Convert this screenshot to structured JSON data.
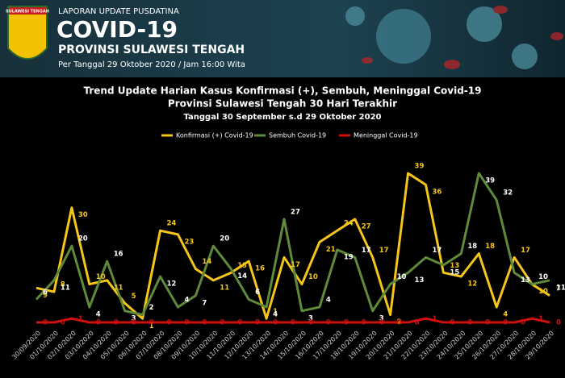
{
  "header": {
    "logo_text": "SULAWESI TENGAH",
    "kicker": "LAPORAN UPDATE PUSDATINA",
    "title": "COVID-19",
    "subtitle": "PROVINSI SULAWESI TENGAH",
    "date": "Per Tanggal 29 Oktober 2020 / Jam 16:00 Wita"
  },
  "chart_data": {
    "type": "line",
    "title": "Trend Update Harian Kasus Konfirmasi (+), Sembuh, Meninggal Covid-19",
    "subtitle": "Provinsi Sulawesi Tengah 30 Hari Terakhir",
    "caption": "Tanggal 30 September s.d 29 Oktober 2020",
    "categories": [
      "30/09/2020",
      "01/10/2020",
      "02/10/2020",
      "03/10/2020",
      "04/10/2020",
      "05/10/2020",
      "06/10/2020",
      "07/10/2020",
      "08/10/2020",
      "09/10/2020",
      "10/10/2020",
      "11/10/2020",
      "12/10/2020",
      "13/10/2020",
      "14/10/2020",
      "15/10/2020",
      "16/10/2020",
      "17/10/2020",
      "18/10/2020",
      "19/10/2020",
      "20/10/2020",
      "21/10/2020",
      "22/10/2020",
      "23/10/2020",
      "24/10/2020",
      "25/10/2020",
      "26/10/2020",
      "27/10/2020",
      "28/10/2020",
      "29/10/2020"
    ],
    "series": [
      {
        "name": "Konfirmasi (+) Covid-19",
        "color": "#f5c518",
        "values": [
          9,
          8,
          30,
          10,
          11,
          5,
          1,
          24,
          23,
          14,
          11,
          13,
          16,
          1,
          17,
          10,
          21,
          24,
          27,
          17,
          2,
          39,
          36,
          13,
          12,
          18,
          4,
          17,
          10,
          7
        ]
      },
      {
        "name": "Sembuh Covid-19",
        "color": "#5e8a3a",
        "values": [
          6,
          11,
          20,
          4,
          16,
          3,
          2,
          12,
          4,
          7,
          20,
          14,
          6,
          4,
          27,
          3,
          4,
          19,
          17,
          3,
          10,
          13,
          17,
          15,
          18,
          39,
          32,
          13,
          10,
          11
        ]
      },
      {
        "name": "Meninggal Covid-19",
        "color": "#d01010",
        "values": [
          0,
          0,
          1,
          0,
          0,
          0,
          0,
          0,
          0,
          0,
          0,
          0,
          0,
          0,
          0,
          0,
          0,
          0,
          0,
          0,
          0,
          0,
          1,
          0,
          0,
          0,
          0,
          0,
          1,
          0
        ]
      }
    ],
    "legend": "top"
  }
}
